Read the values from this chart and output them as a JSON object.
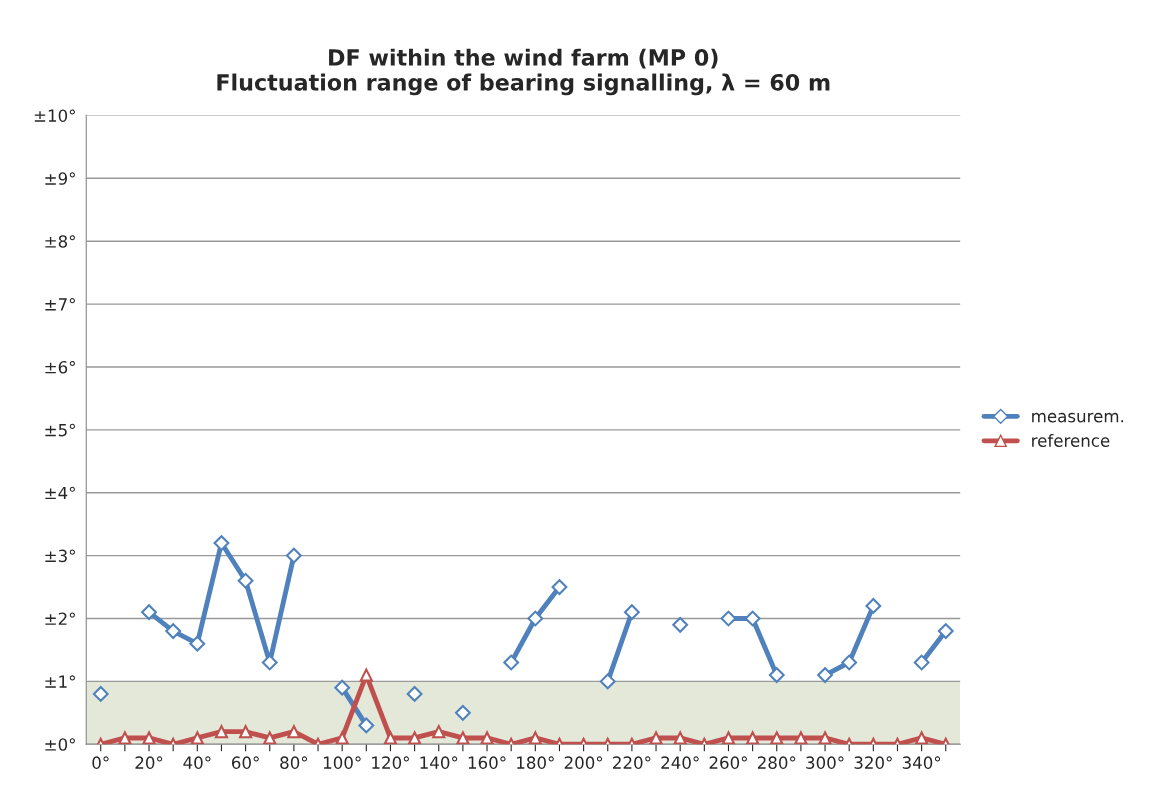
{
  "chart_data": {
    "type": "line",
    "title": "DF within the wind farm (MP 0)\nFluctuation range of bearing signalling, λ = 60 m",
    "categories": [
      "0°",
      null,
      "20°",
      null,
      "40°",
      null,
      "60°",
      null,
      "80°",
      null,
      "100°",
      null,
      "120°",
      null,
      "140°",
      null,
      "160°",
      null,
      "180°",
      null,
      "200°",
      null,
      "220°",
      null,
      "240°",
      null,
      "260°",
      null,
      "280°",
      null,
      "300°",
      null,
      "320°",
      null,
      "340°",
      null
    ],
    "series": [
      {
        "name": "measurem.",
        "color": "#4f81bd",
        "marker": "diamond",
        "values": [
          0.8,
          null,
          2.1,
          1.8,
          1.6,
          3.2,
          2.6,
          1.3,
          3.0,
          null,
          0.9,
          0.3,
          null,
          0.8,
          null,
          0.5,
          null,
          1.3,
          2.0,
          2.5,
          null,
          1.0,
          2.1,
          null,
          1.9,
          null,
          2.0,
          2.0,
          1.1,
          null,
          1.1,
          1.3,
          2.2,
          null,
          1.3,
          1.8
        ]
      },
      {
        "name": "reference",
        "color": "#c0504d",
        "marker": "triangle",
        "values": [
          0,
          0.1,
          0.1,
          0,
          0.1,
          0.2,
          0.2,
          0.1,
          0.2,
          0,
          0.1,
          1.1,
          0.1,
          0.1,
          0.2,
          0.1,
          0.1,
          0,
          0.1,
          0,
          0,
          0,
          0,
          0.1,
          0.1,
          0,
          0.1,
          0.1,
          0.1,
          0.1,
          0.1,
          0,
          0,
          0,
          0.1,
          0
        ]
      }
    ],
    "ylim": [
      0,
      10
    ],
    "yticks": [
      {
        "value": 0,
        "label": "±0°"
      },
      {
        "value": 1,
        "label": "±1°"
      },
      {
        "value": 2,
        "label": "±2°"
      },
      {
        "value": 3,
        "label": "±3°"
      },
      {
        "value": 4,
        "label": "±4°"
      },
      {
        "value": 5,
        "label": "±5°"
      },
      {
        "value": 6,
        "label": "±6°"
      },
      {
        "value": 7,
        "label": "±7°"
      },
      {
        "value": 8,
        "label": "±8°"
      },
      {
        "value": 9,
        "label": "±9°"
      },
      {
        "value": 10,
        "label": "±10°"
      }
    ],
    "bands": [
      {
        "axis": "y",
        "from": 0,
        "to": 1,
        "color": "#e4e8d9"
      }
    ],
    "grid": "y",
    "legend": "right",
    "line_style": "solid"
  }
}
